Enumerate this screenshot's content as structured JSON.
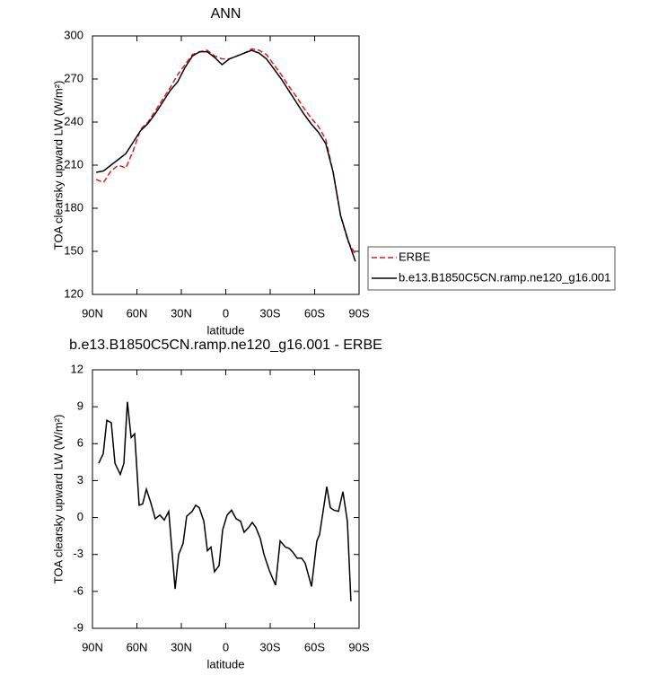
{
  "chart_data": [
    {
      "type": "line",
      "title": "ANN",
      "xlabel": "latitude",
      "ylabel": "TOA clearsky upward LW (W/m²)",
      "x": [
        87.5,
        82.5,
        77.5,
        72.5,
        67.5,
        62.5,
        57.5,
        52.5,
        47.5,
        42.5,
        37.5,
        32.5,
        27.5,
        22.5,
        17.5,
        12.5,
        7.5,
        2.5,
        -2.5,
        -7.5,
        -12.5,
        -17.5,
        -22.5,
        -27.5,
        -32.5,
        -37.5,
        -42.5,
        -47.5,
        -52.5,
        -57.5,
        -62.5,
        -67.5,
        -72.5,
        -77.5,
        -82.5,
        -87.5
      ],
      "series": [
        {
          "name": "ERBE",
          "color": "#e41a1c",
          "dashed": true,
          "values": [
            200,
            198,
            206,
            210,
            208,
            220,
            235,
            240,
            248,
            256,
            264,
            273,
            280,
            287,
            289,
            290,
            286,
            284,
            284,
            286,
            288,
            291,
            290,
            287,
            280,
            273,
            265,
            258,
            250,
            243,
            237,
            228,
            205,
            175,
            157,
            148
          ]
        },
        {
          "name": "b.e13.B1850C5CN.ramp.ne120_g16.001",
          "color": "#000000",
          "dashed": false,
          "values": [
            205,
            206,
            210,
            214,
            218,
            226,
            234,
            239,
            246,
            254,
            262,
            268,
            278,
            286,
            289,
            289,
            285,
            280,
            284,
            286,
            288,
            290,
            288,
            284,
            277,
            270,
            262,
            254,
            246,
            239,
            233,
            225,
            205,
            175,
            158,
            143
          ]
        }
      ],
      "xlim": [
        90,
        -90
      ],
      "xticks": [
        {
          "value": 90,
          "label": "90N"
        },
        {
          "value": 60,
          "label": "60N"
        },
        {
          "value": 30,
          "label": "30N"
        },
        0,
        {
          "value": -30,
          "label": "30S"
        },
        {
          "value": -60,
          "label": "60S"
        },
        {
          "value": -90,
          "label": "90S"
        }
      ],
      "ylim": [
        120,
        300
      ],
      "yticks": [
        120,
        150,
        180,
        210,
        240,
        270,
        300
      ],
      "legend": "right"
    },
    {
      "type": "line",
      "title": "b.e13.B1850C5CN.ramp.ne120_g16.001 - ERBE",
      "xlabel": "latitude",
      "ylabel": "TOA clearsky upward LW (W/m²)",
      "x": [
        85.8,
        82.7,
        80.3,
        77.3,
        74.8,
        71.2,
        68.8,
        66.4,
        63.9,
        61.5,
        58.5,
        56.1,
        53.6,
        50.6,
        47.6,
        44.5,
        41.5,
        38.5,
        34.2,
        31.8,
        28.8,
        26.4,
        22.7,
        20.3,
        17.9,
        14.8,
        12.4,
        10.0,
        7.6,
        4.5,
        2.1,
        -0.9,
        -3.9,
        -7.0,
        -10.0,
        -12.4,
        -15.5,
        -17.9,
        -20.3,
        -23.3,
        -25.8,
        -29.4,
        -33.6,
        -36.7,
        -40.3,
        -42.7,
        -45.2,
        -48.2,
        -51.2,
        -53.6,
        -57.9,
        -61.5,
        -63.3,
        -65.2,
        -68.2,
        -70.6,
        -73.0,
        -76.1,
        -79.1,
        -82.1,
        -84.5
      ],
      "series": [
        {
          "color": "#000000",
          "dashed": false,
          "values": [
            4.4,
            5.2,
            7.9,
            7.7,
            4.4,
            3.5,
            4.4,
            9.4,
            6.5,
            6.8,
            1.0,
            1.1,
            2.3,
            1.2,
            -0.1,
            0.2,
            -0.2,
            0.5,
            -5.8,
            -3.0,
            -2.1,
            0.1,
            0.5,
            1.0,
            0.8,
            -0.3,
            -2.7,
            -2.4,
            -4.4,
            -3.9,
            -1.0,
            0.2,
            0.6,
            -0.1,
            -0.3,
            -1.2,
            -0.8,
            -0.4,
            -0.8,
            -1.7,
            -3.0,
            -4.3,
            -5.5,
            -1.9,
            -2.4,
            -2.5,
            -2.8,
            -3.3,
            -3.3,
            -3.7,
            -5.6,
            -1.9,
            -1.4,
            0.1,
            2.5,
            0.8,
            0.6,
            0.5,
            2.1,
            -0.3,
            -6.8
          ]
        }
      ],
      "xlim": [
        90,
        -90
      ],
      "xticks": [
        {
          "value": 90,
          "label": "90N"
        },
        {
          "value": 60,
          "label": "60N"
        },
        {
          "value": 30,
          "label": "30N"
        },
        0,
        {
          "value": -30,
          "label": "30S"
        },
        {
          "value": -60,
          "label": "60S"
        },
        {
          "value": -90,
          "label": "90S"
        }
      ],
      "ylim": [
        -9,
        12
      ],
      "yticks": [
        -9,
        -6,
        -3,
        0,
        3,
        6,
        9,
        12
      ]
    }
  ]
}
